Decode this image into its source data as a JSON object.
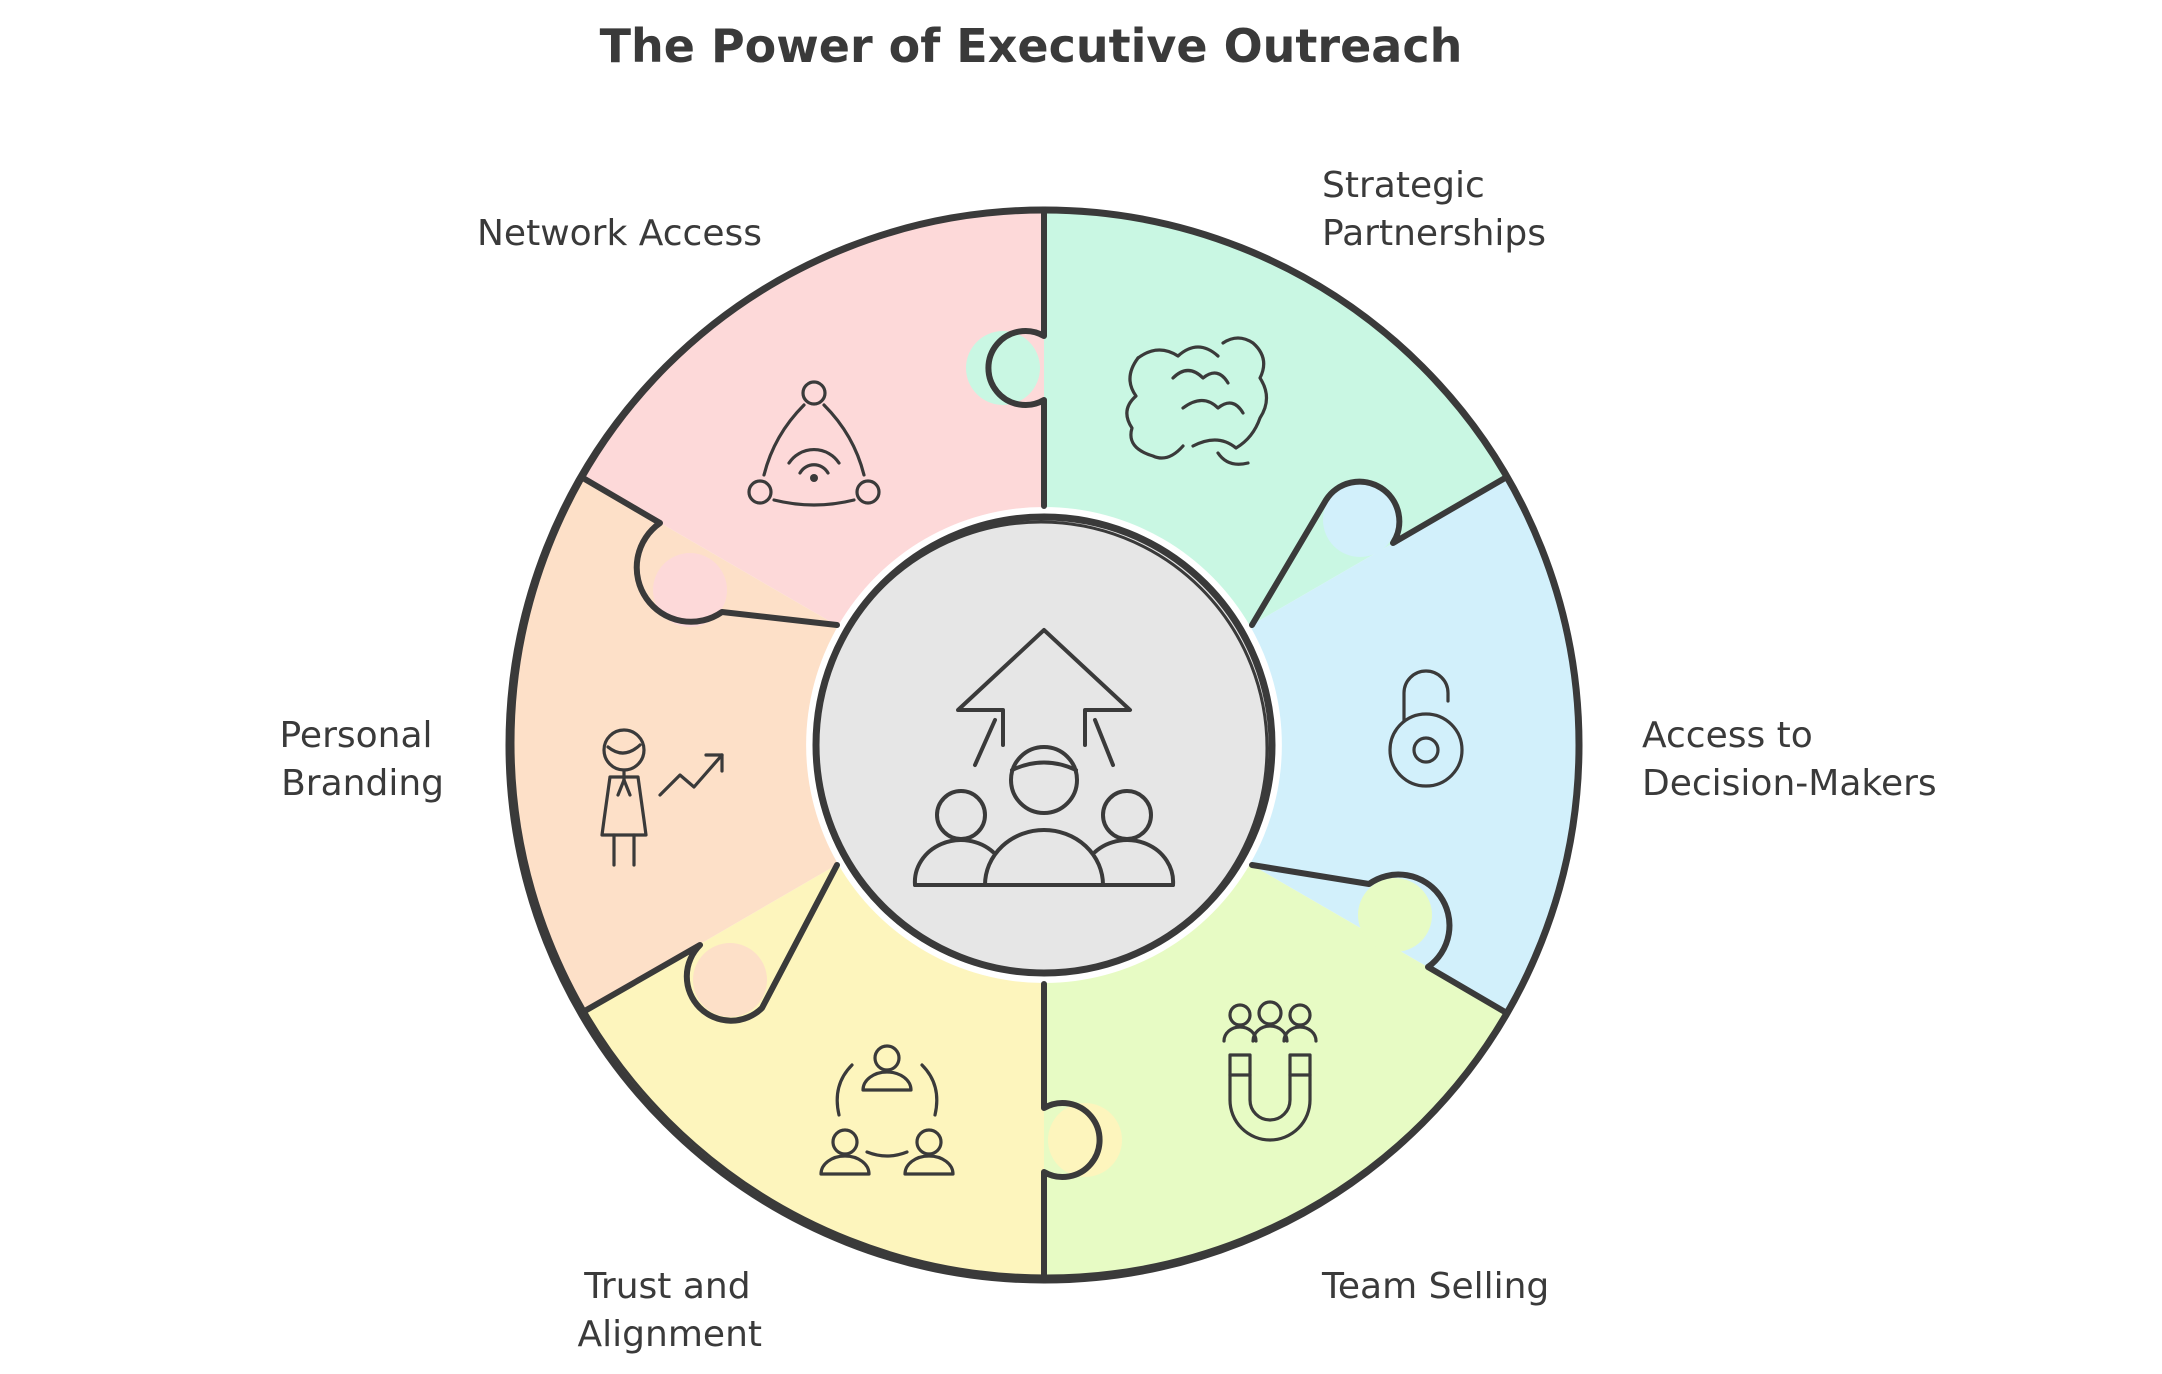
{
  "title": "The Power of Executive Outreach",
  "center": {
    "icon": "team-leadership-arrow-icon",
    "fill": "#e6e6e6"
  },
  "segments": [
    {
      "lines": [
        "Network Access"
      ],
      "icon": "network-signal-icon",
      "color": "#fdd9d9"
    },
    {
      "lines": [
        "Strategic",
        "Partnerships"
      ],
      "icon": "handshake-icon",
      "color": "#c9f7e3"
    },
    {
      "lines": [
        "Access to",
        "Decision-Makers"
      ],
      "icon": "unlocked-padlock-icon",
      "color": "#d2f0fb"
    },
    {
      "lines": [
        "Team Selling"
      ],
      "icon": "team-magnet-icon",
      "color": "#e7fbc4"
    },
    {
      "lines": [
        "Trust and",
        "Alignment"
      ],
      "icon": "people-cycle-icon",
      "color": "#fdf5bd"
    },
    {
      "lines": [
        "Personal",
        "Branding"
      ],
      "icon": "person-growth-icon",
      "color": "#fde0c8"
    }
  ]
}
